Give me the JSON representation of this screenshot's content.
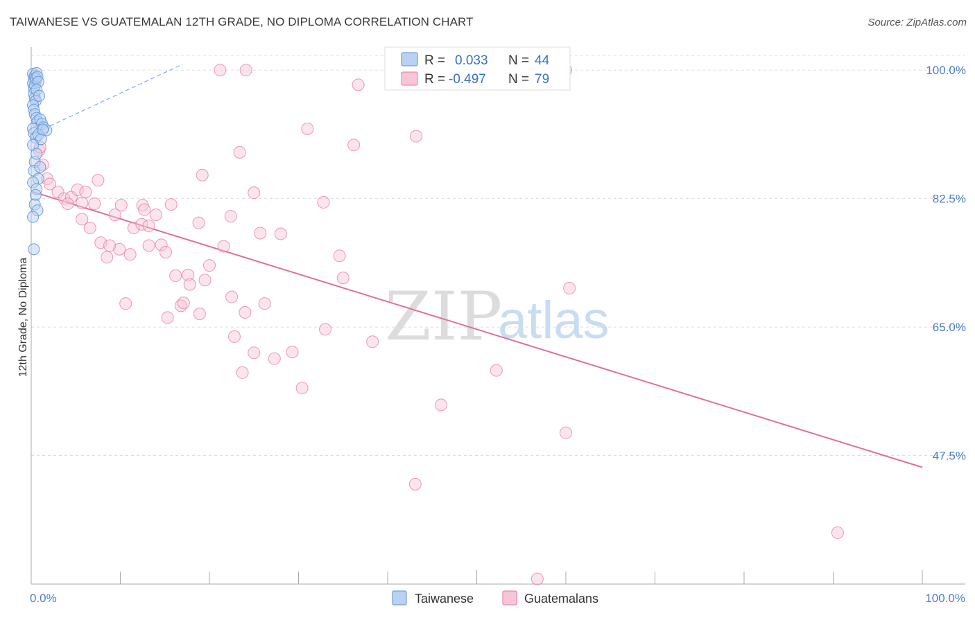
{
  "title": "TAIWANESE VS GUATEMALAN 12TH GRADE, NO DIPLOMA CORRELATION CHART",
  "source": "Source: ZipAtlas.com",
  "watermark": {
    "zip": "ZIP",
    "atlas": "atlas"
  },
  "colors": {
    "taiwanese": "#5b8fd6",
    "taiwanese_fill": "#b9d2f3",
    "guatemalans": "#e8769b",
    "guatemalans_fill": "#f7c5d6",
    "trend_pink": "#e0709a",
    "trend_blue": "#6a9ad8",
    "tick": "#4a7cc9",
    "grid": "#dddddd"
  },
  "legend": {
    "rows": [
      {
        "r_label": "R =",
        "r_value": "0.033",
        "n_label": "N =",
        "n_value": "44"
      },
      {
        "r_label": "R =",
        "r_value": "-0.497",
        "n_label": "N =",
        "n_value": "79"
      }
    ]
  },
  "chart_data": {
    "type": "scatter",
    "title": "TAIWANESE VS GUATEMALAN 12TH GRADE, NO DIPLOMA CORRELATION CHART",
    "xlabel": "",
    "ylabel": "12th Grade, No Diploma",
    "xlim": [
      0,
      100
    ],
    "ylim": [
      30,
      102
    ],
    "x_tick_labels": [
      "0.0%",
      "100.0%"
    ],
    "y_ticks": [
      {
        "value": 100.0,
        "label": "100.0%"
      },
      {
        "value": 82.5,
        "label": "82.5%"
      },
      {
        "value": 65.0,
        "label": "65.0%"
      },
      {
        "value": 47.5,
        "label": "47.5%"
      }
    ],
    "series": [
      {
        "name": "Taiwanese",
        "r": 0.033,
        "n": 44,
        "points": [
          [
            0.2,
            99.5
          ],
          [
            0.3,
            98.8
          ],
          [
            0.4,
            99.2
          ],
          [
            0.5,
            98.5
          ],
          [
            0.6,
            99.6
          ],
          [
            0.2,
            98.2
          ],
          [
            0.3,
            97.5
          ],
          [
            0.4,
            97.9
          ],
          [
            0.5,
            98.9
          ],
          [
            0.7,
            99.1
          ],
          [
            0.8,
            98.4
          ],
          [
            0.3,
            96.8
          ],
          [
            0.4,
            96.2
          ],
          [
            0.5,
            95.8
          ],
          [
            0.6,
            97.3
          ],
          [
            0.9,
            96.5
          ],
          [
            0.2,
            95.2
          ],
          [
            0.3,
            94.6
          ],
          [
            0.4,
            94.0
          ],
          [
            0.6,
            93.5
          ],
          [
            0.7,
            93.0
          ],
          [
            1.0,
            93.3
          ],
          [
            1.2,
            92.7
          ],
          [
            1.4,
            92.2
          ],
          [
            1.7,
            91.8
          ],
          [
            0.2,
            92.0
          ],
          [
            0.3,
            91.4
          ],
          [
            0.5,
            90.8
          ],
          [
            0.8,
            91.2
          ],
          [
            1.1,
            90.6
          ],
          [
            1.3,
            91.9
          ],
          [
            0.2,
            89.8
          ],
          [
            0.4,
            87.5
          ],
          [
            0.3,
            86.3
          ],
          [
            0.8,
            85.2
          ],
          [
            0.2,
            84.7
          ],
          [
            0.6,
            83.8
          ],
          [
            0.5,
            83.0
          ],
          [
            0.4,
            81.7
          ],
          [
            0.7,
            80.9
          ],
          [
            0.2,
            80.0
          ],
          [
            0.3,
            75.6
          ],
          [
            1.0,
            86.8
          ],
          [
            0.6,
            88.6
          ]
        ],
        "trend": {
          "x": [
            0,
            17
          ],
          "y": [
            91.2,
            100.8
          ]
        }
      },
      {
        "name": "Guatemalans",
        "r": -0.497,
        "n": 79,
        "points": [
          [
            21.2,
            100.0
          ],
          [
            24.1,
            100.0
          ],
          [
            60.0,
            100.0
          ],
          [
            36.7,
            98.0
          ],
          [
            31.0,
            92.0
          ],
          [
            36.2,
            89.8
          ],
          [
            43.2,
            91.0
          ],
          [
            23.4,
            88.8
          ],
          [
            19.2,
            85.7
          ],
          [
            0.9,
            89.1
          ],
          [
            1.3,
            87.1
          ],
          [
            1.8,
            85.2
          ],
          [
            2.1,
            84.5
          ],
          [
            3.0,
            83.4
          ],
          [
            3.7,
            82.5
          ],
          [
            4.5,
            82.7
          ],
          [
            5.2,
            83.7
          ],
          [
            6.1,
            83.4
          ],
          [
            7.5,
            85.0
          ],
          [
            4.1,
            81.8
          ],
          [
            5.7,
            81.9
          ],
          [
            7.1,
            81.8
          ],
          [
            10.1,
            81.6
          ],
          [
            12.5,
            81.6
          ],
          [
            15.7,
            81.7
          ],
          [
            12.7,
            81.0
          ],
          [
            9.4,
            80.3
          ],
          [
            14.0,
            80.3
          ],
          [
            25.0,
            83.3
          ],
          [
            32.8,
            82.0
          ],
          [
            22.4,
            80.1
          ],
          [
            18.8,
            79.2
          ],
          [
            5.7,
            79.7
          ],
          [
            6.6,
            78.5
          ],
          [
            11.5,
            78.5
          ],
          [
            12.4,
            79.0
          ],
          [
            13.2,
            78.8
          ],
          [
            25.7,
            77.8
          ],
          [
            28.0,
            77.7
          ],
          [
            7.8,
            76.5
          ],
          [
            8.8,
            76.1
          ],
          [
            9.9,
            75.6
          ],
          [
            11.1,
            74.9
          ],
          [
            13.2,
            76.1
          ],
          [
            14.6,
            76.2
          ],
          [
            15.1,
            75.2
          ],
          [
            21.6,
            76.0
          ],
          [
            8.5,
            74.5
          ],
          [
            20.0,
            73.4
          ],
          [
            34.6,
            74.7
          ],
          [
            16.2,
            72.0
          ],
          [
            17.6,
            72.1
          ],
          [
            17.8,
            70.8
          ],
          [
            19.5,
            71.4
          ],
          [
            35.0,
            71.7
          ],
          [
            60.4,
            70.3
          ],
          [
            22.5,
            69.1
          ],
          [
            10.6,
            68.2
          ],
          [
            16.8,
            67.9
          ],
          [
            17.1,
            68.3
          ],
          [
            26.2,
            68.2
          ],
          [
            18.9,
            66.8
          ],
          [
            24.0,
            67.0
          ],
          [
            15.3,
            66.3
          ],
          [
            33.0,
            64.7
          ],
          [
            22.8,
            63.7
          ],
          [
            38.3,
            63.0
          ],
          [
            25.0,
            61.5
          ],
          [
            29.3,
            61.6
          ],
          [
            27.3,
            60.7
          ],
          [
            23.7,
            58.8
          ],
          [
            52.2,
            59.1
          ],
          [
            30.4,
            56.7
          ],
          [
            46.0,
            54.4
          ],
          [
            60.0,
            50.6
          ],
          [
            43.1,
            43.6
          ],
          [
            90.5,
            37.0
          ],
          [
            56.8,
            30.7
          ],
          [
            1.0,
            89.5
          ]
        ],
        "trend": {
          "x": [
            0,
            100
          ],
          "y": [
            83.5,
            45.9
          ]
        }
      }
    ],
    "legend_bottom": [
      "Taiwanese",
      "Guatemalans"
    ]
  }
}
